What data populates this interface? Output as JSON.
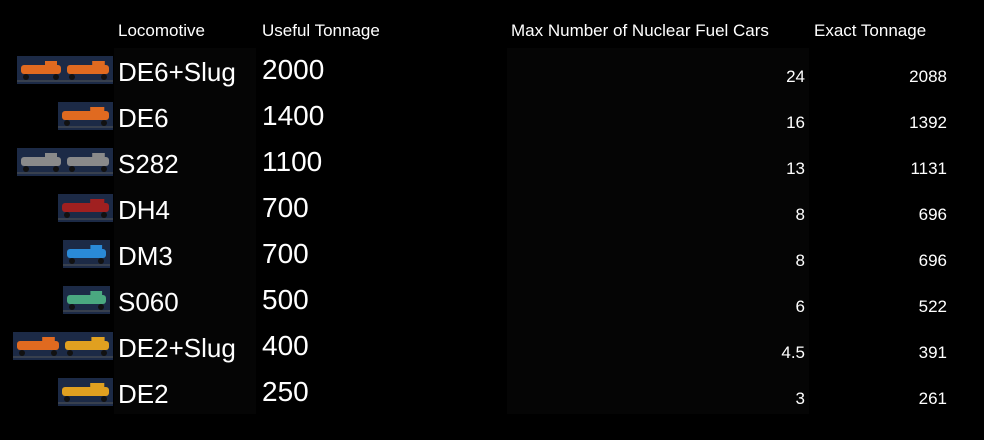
{
  "table": {
    "headers": [
      "Locomotive",
      "Useful Tonnage",
      "Max Number of Nuclear Fuel Cars",
      "Exact Tonnage"
    ],
    "rows": [
      [
        "DE6+Slug",
        2000,
        24,
        2088
      ],
      [
        "DE6",
        1400,
        16,
        1392
      ],
      [
        "S282",
        1100,
        13,
        1131
      ],
      [
        "DH4",
        700,
        8,
        696
      ],
      [
        "DM3",
        700,
        8,
        696
      ],
      [
        "S060",
        500,
        6,
        522
      ],
      [
        "DE2+Slug",
        400,
        4.5,
        391
      ],
      [
        "DE2",
        250,
        3,
        261
      ]
    ]
  }
}
